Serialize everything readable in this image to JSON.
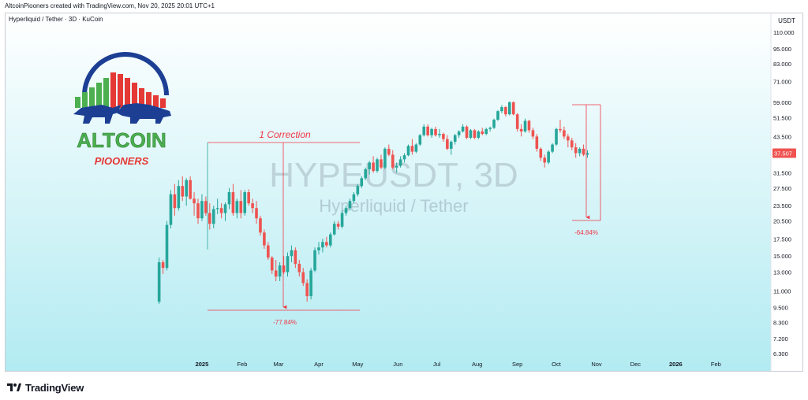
{
  "header": {
    "credit": "AltcoinPiooners created with TradingView.com, Nov 20, 2025 20:01 UTC+1"
  },
  "chart": {
    "symbol_line": "Hyperliquid / Tether · 3D · KuCoin",
    "currency": "USDT",
    "watermark_symbol": "HYPEUSDT, 3D",
    "watermark_name": "Hyperliquid / Tether",
    "last_price": "37.507",
    "colors": {
      "up": "#26a69a",
      "down": "#ef5350",
      "annotation": "#f23645",
      "bg_top": "#ffffff",
      "bg_bottom": "#b2ebf2"
    }
  },
  "logo": {
    "brand": "ALTCOIN",
    "tagline": "PIOONERS",
    "icon": "bull-bear-chart-icon"
  },
  "annotations": {
    "correction_title": "1 Correction",
    "drop1": "-77.84%",
    "drop2": "-64.84%"
  },
  "chart_data": {
    "type": "candlestick",
    "yscale": "log",
    "ylim": [
      6.3,
      110
    ],
    "y_ticks": [
      "110.000",
      "95.000",
      "83.000",
      "71.000",
      "59.000",
      "51.500",
      "43.500",
      "37.507",
      "31.500",
      "27.500",
      "23.500",
      "20.500",
      "17.500",
      "15.000",
      "13.000",
      "11.000",
      "9.500",
      "8.300",
      "7.200",
      "6.300"
    ],
    "x_ticks": [
      "2025",
      "Feb",
      "Mar",
      "Apr",
      "May",
      "Jun",
      "Jul",
      "Aug",
      "Sep",
      "Oct",
      "Nov",
      "Dec",
      "2026",
      "Feb"
    ],
    "x_tick_dates": [
      "2025-01-01",
      "2025-02-01",
      "2025-03-01",
      "2025-04-01",
      "2025-05-01",
      "2025-06-01",
      "2025-07-01",
      "2025-08-01",
      "2025-09-01",
      "2025-10-01",
      "2025-11-01",
      "2025-12-01",
      "2026-01-01",
      "2026-02-01"
    ],
    "candles": [
      {
        "date": "2024-11-29",
        "o": 10.0,
        "h": 14.8,
        "l": 9.8,
        "c": 14.2
      },
      {
        "date": "2024-12-02",
        "o": 14.2,
        "h": 14.5,
        "l": 12.8,
        "c": 13.5
      },
      {
        "date": "2024-12-05",
        "o": 13.5,
        "h": 20.5,
        "l": 13.2,
        "c": 19.8
      },
      {
        "date": "2024-12-08",
        "o": 19.8,
        "h": 27.0,
        "l": 19.2,
        "c": 26.0
      },
      {
        "date": "2024-12-11",
        "o": 26.0,
        "h": 28.5,
        "l": 21.5,
        "c": 23.0
      },
      {
        "date": "2024-12-14",
        "o": 23.0,
        "h": 29.5,
        "l": 22.5,
        "c": 28.0
      },
      {
        "date": "2024-12-17",
        "o": 28.0,
        "h": 30.5,
        "l": 24.5,
        "c": 25.5
      },
      {
        "date": "2024-12-20",
        "o": 25.5,
        "h": 30.0,
        "l": 23.5,
        "c": 29.5
      },
      {
        "date": "2024-12-23",
        "o": 29.5,
        "h": 30.5,
        "l": 24.8,
        "c": 25.0
      },
      {
        "date": "2024-12-26",
        "o": 25.0,
        "h": 26.5,
        "l": 21.5,
        "c": 24.0
      },
      {
        "date": "2024-12-29",
        "o": 24.0,
        "h": 25.0,
        "l": 20.0,
        "c": 21.0
      },
      {
        "date": "2025-01-01",
        "o": 21.0,
        "h": 26.0,
        "l": 20.5,
        "c": 24.5
      },
      {
        "date": "2025-01-04",
        "o": 24.5,
        "h": 25.5,
        "l": 21.5,
        "c": 22.0
      },
      {
        "date": "2025-01-07",
        "o": 22.0,
        "h": 24.0,
        "l": 19.0,
        "c": 20.0
      },
      {
        "date": "2025-01-10",
        "o": 20.0,
        "h": 23.5,
        "l": 19.2,
        "c": 22.8
      },
      {
        "date": "2025-01-13",
        "o": 22.8,
        "h": 25.0,
        "l": 21.8,
        "c": 23.0
      },
      {
        "date": "2025-01-16",
        "o": 23.0,
        "h": 24.0,
        "l": 21.0,
        "c": 22.0
      },
      {
        "date": "2025-01-19",
        "o": 22.0,
        "h": 24.2,
        "l": 20.5,
        "c": 23.8
      },
      {
        "date": "2025-01-22",
        "o": 23.8,
        "h": 27.5,
        "l": 22.8,
        "c": 26.5
      },
      {
        "date": "2025-01-25",
        "o": 26.5,
        "h": 28.5,
        "l": 21.5,
        "c": 22.0
      },
      {
        "date": "2025-01-28",
        "o": 22.0,
        "h": 25.0,
        "l": 21.0,
        "c": 24.5
      },
      {
        "date": "2025-01-31",
        "o": 24.5,
        "h": 27.0,
        "l": 21.0,
        "c": 22.0
      },
      {
        "date": "2025-02-03",
        "o": 22.0,
        "h": 27.0,
        "l": 21.5,
        "c": 26.5
      },
      {
        "date": "2025-02-06",
        "o": 26.5,
        "h": 27.2,
        "l": 23.5,
        "c": 24.0
      },
      {
        "date": "2025-02-09",
        "o": 24.0,
        "h": 25.0,
        "l": 22.0,
        "c": 23.0
      },
      {
        "date": "2025-02-12",
        "o": 23.0,
        "h": 24.5,
        "l": 20.0,
        "c": 21.0
      },
      {
        "date": "2025-02-15",
        "o": 21.0,
        "h": 21.5,
        "l": 18.0,
        "c": 18.5
      },
      {
        "date": "2025-02-18",
        "o": 18.5,
        "h": 19.0,
        "l": 16.0,
        "c": 16.5
      },
      {
        "date": "2025-02-21",
        "o": 16.5,
        "h": 17.0,
        "l": 14.5,
        "c": 14.8
      },
      {
        "date": "2025-02-24",
        "o": 14.8,
        "h": 15.0,
        "l": 12.8,
        "c": 13.2
      },
      {
        "date": "2025-02-27",
        "o": 13.2,
        "h": 14.5,
        "l": 12.0,
        "c": 12.5
      },
      {
        "date": "2025-03-02",
        "o": 12.5,
        "h": 14.2,
        "l": 12.0,
        "c": 13.8
      },
      {
        "date": "2025-03-05",
        "o": 13.8,
        "h": 15.0,
        "l": 12.8,
        "c": 13.0
      },
      {
        "date": "2025-03-08",
        "o": 13.0,
        "h": 15.5,
        "l": 12.5,
        "c": 15.0
      },
      {
        "date": "2025-03-11",
        "o": 15.0,
        "h": 16.5,
        "l": 14.2,
        "c": 15.8
      },
      {
        "date": "2025-03-14",
        "o": 15.8,
        "h": 16.2,
        "l": 13.5,
        "c": 14.0
      },
      {
        "date": "2025-03-17",
        "o": 14.0,
        "h": 14.5,
        "l": 12.5,
        "c": 13.0
      },
      {
        "date": "2025-03-20",
        "o": 13.0,
        "h": 13.5,
        "l": 11.5,
        "c": 11.8
      },
      {
        "date": "2025-03-23",
        "o": 11.8,
        "h": 12.2,
        "l": 10.0,
        "c": 10.5
      },
      {
        "date": "2025-03-26",
        "o": 10.5,
        "h": 13.5,
        "l": 10.2,
        "c": 13.2
      },
      {
        "date": "2025-03-29",
        "o": 13.2,
        "h": 16.2,
        "l": 13.0,
        "c": 15.8
      },
      {
        "date": "2025-04-01",
        "o": 15.8,
        "h": 17.0,
        "l": 15.2,
        "c": 16.2
      },
      {
        "date": "2025-04-04",
        "o": 16.2,
        "h": 17.5,
        "l": 15.5,
        "c": 17.0
      },
      {
        "date": "2025-04-07",
        "o": 17.0,
        "h": 17.8,
        "l": 16.2,
        "c": 16.5
      },
      {
        "date": "2025-04-10",
        "o": 16.5,
        "h": 18.5,
        "l": 16.2,
        "c": 18.2
      },
      {
        "date": "2025-04-13",
        "o": 18.2,
        "h": 20.5,
        "l": 18.0,
        "c": 20.0
      },
      {
        "date": "2025-04-16",
        "o": 20.0,
        "h": 20.5,
        "l": 19.0,
        "c": 19.5
      },
      {
        "date": "2025-04-19",
        "o": 19.5,
        "h": 22.5,
        "l": 19.2,
        "c": 22.0
      },
      {
        "date": "2025-04-22",
        "o": 22.0,
        "h": 23.5,
        "l": 21.5,
        "c": 23.0
      },
      {
        "date": "2025-04-25",
        "o": 23.0,
        "h": 25.0,
        "l": 22.5,
        "c": 24.5
      },
      {
        "date": "2025-04-28",
        "o": 24.5,
        "h": 26.5,
        "l": 24.0,
        "c": 26.0
      },
      {
        "date": "2025-05-01",
        "o": 26.0,
        "h": 28.5,
        "l": 25.5,
        "c": 28.0
      },
      {
        "date": "2025-05-04",
        "o": 28.0,
        "h": 30.5,
        "l": 27.5,
        "c": 30.0
      },
      {
        "date": "2025-05-07",
        "o": 30.0,
        "h": 33.0,
        "l": 29.5,
        "c": 32.5
      },
      {
        "date": "2025-05-10",
        "o": 32.5,
        "h": 35.0,
        "l": 31.0,
        "c": 34.5
      },
      {
        "date": "2025-05-13",
        "o": 34.5,
        "h": 36.5,
        "l": 31.5,
        "c": 32.0
      },
      {
        "date": "2025-05-16",
        "o": 32.0,
        "h": 36.0,
        "l": 31.5,
        "c": 35.5
      },
      {
        "date": "2025-05-19",
        "o": 35.5,
        "h": 37.0,
        "l": 32.5,
        "c": 33.0
      },
      {
        "date": "2025-05-22",
        "o": 33.0,
        "h": 39.5,
        "l": 32.5,
        "c": 39.0
      },
      {
        "date": "2025-05-25",
        "o": 39.0,
        "h": 40.5,
        "l": 36.5,
        "c": 37.0
      },
      {
        "date": "2025-05-28",
        "o": 37.0,
        "h": 38.5,
        "l": 32.5,
        "c": 33.0
      },
      {
        "date": "2025-05-31",
        "o": 33.0,
        "h": 34.5,
        "l": 31.5,
        "c": 33.5
      },
      {
        "date": "2025-06-03",
        "o": 33.5,
        "h": 36.5,
        "l": 33.0,
        "c": 35.5
      },
      {
        "date": "2025-06-06",
        "o": 35.5,
        "h": 37.5,
        "l": 34.5,
        "c": 36.8
      },
      {
        "date": "2025-06-09",
        "o": 36.8,
        "h": 40.5,
        "l": 36.5,
        "c": 40.0
      },
      {
        "date": "2025-06-12",
        "o": 40.0,
        "h": 42.5,
        "l": 37.0,
        "c": 38.0
      },
      {
        "date": "2025-06-15",
        "o": 38.0,
        "h": 41.0,
        "l": 37.5,
        "c": 40.5
      },
      {
        "date": "2025-06-18",
        "o": 40.5,
        "h": 44.5,
        "l": 40.0,
        "c": 44.0
      },
      {
        "date": "2025-06-21",
        "o": 44.0,
        "h": 48.5,
        "l": 43.5,
        "c": 47.5
      },
      {
        "date": "2025-06-24",
        "o": 47.5,
        "h": 48.5,
        "l": 43.5,
        "c": 44.0
      },
      {
        "date": "2025-06-27",
        "o": 44.0,
        "h": 47.0,
        "l": 43.0,
        "c": 46.5
      },
      {
        "date": "2025-06-30",
        "o": 46.5,
        "h": 47.5,
        "l": 43.5,
        "c": 44.0
      },
      {
        "date": "2025-07-03",
        "o": 44.0,
        "h": 46.5,
        "l": 43.0,
        "c": 44.5
      },
      {
        "date": "2025-07-06",
        "o": 44.5,
        "h": 45.0,
        "l": 41.5,
        "c": 42.5
      },
      {
        "date": "2025-07-09",
        "o": 42.5,
        "h": 44.0,
        "l": 38.5,
        "c": 39.0
      },
      {
        "date": "2025-07-12",
        "o": 39.0,
        "h": 42.0,
        "l": 37.0,
        "c": 41.5
      },
      {
        "date": "2025-07-15",
        "o": 41.5,
        "h": 44.5,
        "l": 40.5,
        "c": 44.0
      },
      {
        "date": "2025-07-18",
        "o": 44.0,
        "h": 46.0,
        "l": 43.0,
        "c": 45.5
      },
      {
        "date": "2025-07-21",
        "o": 45.5,
        "h": 48.5,
        "l": 45.0,
        "c": 47.5
      },
      {
        "date": "2025-07-24",
        "o": 47.5,
        "h": 48.0,
        "l": 42.5,
        "c": 43.0
      },
      {
        "date": "2025-07-27",
        "o": 43.0,
        "h": 46.5,
        "l": 42.5,
        "c": 46.0
      },
      {
        "date": "2025-07-30",
        "o": 46.0,
        "h": 46.5,
        "l": 42.5,
        "c": 43.0
      },
      {
        "date": "2025-08-02",
        "o": 43.0,
        "h": 46.0,
        "l": 42.5,
        "c": 45.5
      },
      {
        "date": "2025-08-05",
        "o": 45.5,
        "h": 47.0,
        "l": 44.0,
        "c": 44.5
      },
      {
        "date": "2025-08-08",
        "o": 44.5,
        "h": 47.0,
        "l": 44.0,
        "c": 46.5
      },
      {
        "date": "2025-08-11",
        "o": 46.5,
        "h": 47.5,
        "l": 45.5,
        "c": 47.0
      },
      {
        "date": "2025-08-14",
        "o": 47.0,
        "h": 51.0,
        "l": 46.5,
        "c": 50.5
      },
      {
        "date": "2025-08-17",
        "o": 50.5,
        "h": 55.0,
        "l": 50.0,
        "c": 54.5
      },
      {
        "date": "2025-08-20",
        "o": 54.5,
        "h": 57.5,
        "l": 53.5,
        "c": 56.5
      },
      {
        "date": "2025-08-23",
        "o": 56.5,
        "h": 57.0,
        "l": 52.0,
        "c": 53.0
      },
      {
        "date": "2025-08-26",
        "o": 53.0,
        "h": 59.5,
        "l": 52.5,
        "c": 59.0
      },
      {
        "date": "2025-08-29",
        "o": 59.0,
        "h": 59.5,
        "l": 52.5,
        "c": 53.0
      },
      {
        "date": "2025-09-01",
        "o": 53.0,
        "h": 53.5,
        "l": 45.5,
        "c": 46.5
      },
      {
        "date": "2025-09-04",
        "o": 46.5,
        "h": 48.5,
        "l": 43.5,
        "c": 45.5
      },
      {
        "date": "2025-09-07",
        "o": 45.5,
        "h": 51.0,
        "l": 45.0,
        "c": 50.0
      },
      {
        "date": "2025-09-10",
        "o": 50.0,
        "h": 50.5,
        "l": 45.0,
        "c": 46.0
      },
      {
        "date": "2025-09-13",
        "o": 46.0,
        "h": 47.0,
        "l": 42.5,
        "c": 43.5
      },
      {
        "date": "2025-09-16",
        "o": 43.5,
        "h": 44.5,
        "l": 38.0,
        "c": 39.0
      },
      {
        "date": "2025-09-19",
        "o": 39.0,
        "h": 39.5,
        "l": 35.0,
        "c": 36.0
      },
      {
        "date": "2025-09-22",
        "o": 36.0,
        "h": 37.0,
        "l": 33.0,
        "c": 34.5
      },
      {
        "date": "2025-09-25",
        "o": 34.5,
        "h": 38.5,
        "l": 34.0,
        "c": 38.0
      },
      {
        "date": "2025-09-28",
        "o": 38.0,
        "h": 41.0,
        "l": 37.5,
        "c": 40.5
      },
      {
        "date": "2025-10-01",
        "o": 40.5,
        "h": 47.0,
        "l": 40.0,
        "c": 46.5
      },
      {
        "date": "2025-10-04",
        "o": 46.5,
        "h": 50.5,
        "l": 45.0,
        "c": 46.0
      },
      {
        "date": "2025-10-07",
        "o": 46.0,
        "h": 47.5,
        "l": 42.5,
        "c": 43.5
      },
      {
        "date": "2025-10-10",
        "o": 43.5,
        "h": 44.5,
        "l": 39.5,
        "c": 42.0
      },
      {
        "date": "2025-10-13",
        "o": 42.0,
        "h": 43.0,
        "l": 38.5,
        "c": 39.5
      },
      {
        "date": "2025-10-16",
        "o": 39.5,
        "h": 41.0,
        "l": 36.0,
        "c": 37.5
      },
      {
        "date": "2025-10-19",
        "o": 37.5,
        "h": 39.5,
        "l": 36.5,
        "c": 39.0
      },
      {
        "date": "2025-10-22",
        "o": 39.0,
        "h": 40.5,
        "l": 36.5,
        "c": 37.0
      },
      {
        "date": "2025-10-25",
        "o": 37.0,
        "h": 38.5,
        "l": 36.0,
        "c": 37.507
      }
    ]
  }
}
